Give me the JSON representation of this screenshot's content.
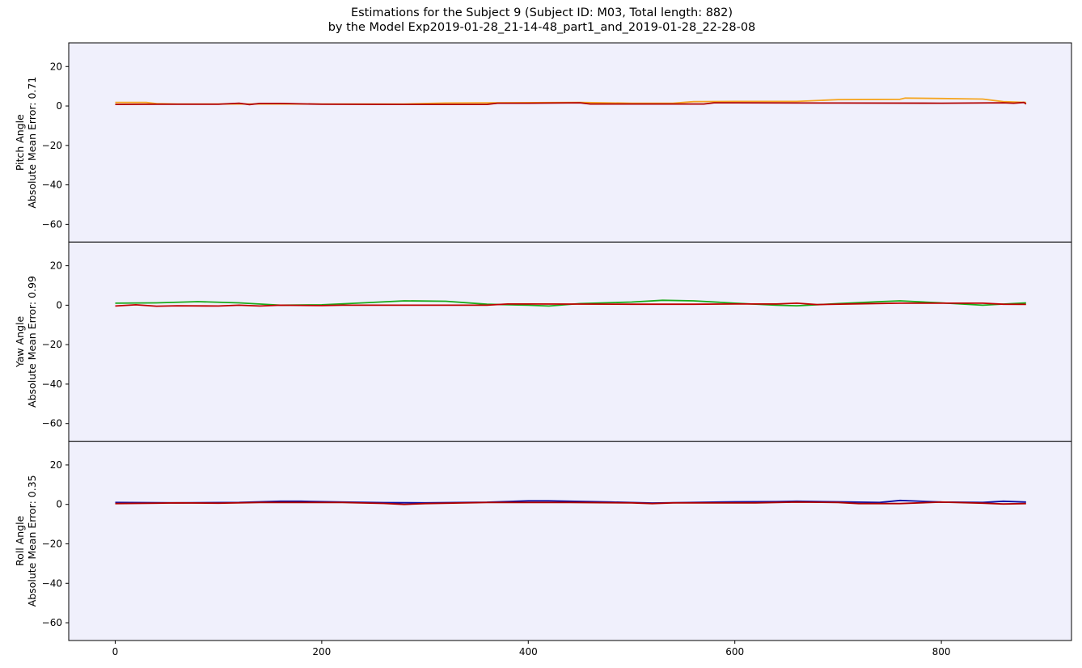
{
  "chart_data": {
    "type": "line",
    "title_line1": "Estimations for the Subject 9 (Subject ID: M03, Total length: 882)",
    "title_line2": "by the Model Exp2019-01-28_21-14-48_part1_and_2019-01-28_22-28-08",
    "xlim": [
      -45,
      926
    ],
    "ylim": [
      -69,
      32
    ],
    "xticks": [
      0,
      200,
      400,
      600,
      800
    ],
    "yticks": [
      20,
      0,
      -20,
      -40,
      -60
    ],
    "background": "#f0f0fc",
    "panels": [
      {
        "ylabel_line1": "Pitch Angle",
        "ylabel_line2": "Absolute Mean Error: 0.71",
        "series": [
          {
            "role": "ground-truth",
            "color": "#f5a623",
            "x": [
              0,
              30,
              40,
              60,
              100,
              200,
              280,
              320,
              360,
              450,
              500,
              540,
              560,
              600,
              660,
              700,
              760,
              765,
              800,
              840,
              860,
              882
            ],
            "y": [
              1.8,
              1.8,
              1.2,
              1.0,
              1.0,
              1.0,
              1.0,
              1.5,
              1.6,
              1.8,
              1.4,
              1.4,
              2.2,
              2.3,
              2.3,
              3.2,
              3.4,
              4.0,
              3.8,
              3.5,
              2.2,
              1.8
            ]
          },
          {
            "role": "estimation",
            "color": "#b00000",
            "x": [
              0,
              40,
              100,
              120,
              130,
              140,
              160,
              200,
              280,
              300,
              360,
              370,
              400,
              450,
              460,
              540,
              570,
              580,
              600,
              700,
              800,
              860,
              870,
              880,
              882
            ],
            "y": [
              0.8,
              0.9,
              0.9,
              1.4,
              0.7,
              1.3,
              1.3,
              0.9,
              0.8,
              0.8,
              0.8,
              1.4,
              1.4,
              1.6,
              1.0,
              1.0,
              1.0,
              1.6,
              1.6,
              1.5,
              1.4,
              1.6,
              1.4,
              1.8,
              1.0
            ]
          }
        ]
      },
      {
        "ylabel_line1": "Yaw Angle",
        "ylabel_line2": "Absolute Mean Error: 0.99",
        "series": [
          {
            "role": "ground-truth",
            "color": "#1aaa1a",
            "x": [
              0,
              40,
              80,
              120,
              160,
              200,
              240,
              280,
              320,
              360,
              400,
              420,
              450,
              500,
              530,
              560,
              600,
              640,
              660,
              700,
              740,
              760,
              800,
              840,
              882
            ],
            "y": [
              1.0,
              1.2,
              1.8,
              1.2,
              0.0,
              0.2,
              1.2,
              2.2,
              2.0,
              0.5,
              0.0,
              -0.4,
              0.8,
              1.6,
              2.5,
              2.2,
              1.0,
              0.0,
              -0.3,
              0.8,
              1.8,
              2.2,
              1.2,
              0.0,
              1.2
            ]
          },
          {
            "role": "estimation",
            "color": "#c00000",
            "x": [
              0,
              20,
              40,
              60,
              100,
              120,
              140,
              160,
              200,
              220,
              300,
              340,
              360,
              380,
              400,
              500,
              560,
              600,
              640,
              660,
              680,
              720,
              760,
              800,
              840,
              860,
              882
            ],
            "y": [
              -0.4,
              0.2,
              -0.5,
              -0.3,
              -0.4,
              0.0,
              -0.4,
              0.0,
              -0.2,
              0.0,
              0.0,
              0.0,
              0.0,
              0.6,
              0.6,
              0.5,
              0.5,
              0.6,
              0.6,
              1.0,
              0.3,
              0.7,
              1.0,
              1.0,
              1.0,
              0.5,
              0.4
            ]
          }
        ]
      },
      {
        "ylabel_line1": "Roll Angle",
        "ylabel_line2": "Absolute Mean Error: 0.35",
        "series": [
          {
            "role": "ground-truth",
            "color": "#0a0aa0",
            "x": [
              0,
              60,
              120,
              160,
              180,
              220,
              260,
              300,
              360,
              400,
              420,
              480,
              520,
              560,
              600,
              640,
              660,
              700,
              740,
              760,
              800,
              840,
              860,
              882
            ],
            "y": [
              1.0,
              0.8,
              1.0,
              1.6,
              1.6,
              1.2,
              0.9,
              0.8,
              1.1,
              1.8,
              1.8,
              1.2,
              0.7,
              1.0,
              1.3,
              1.4,
              1.6,
              1.3,
              1.0,
              2.0,
              1.2,
              1.0,
              1.6,
              1.2
            ]
          },
          {
            "role": "estimation",
            "color": "#b00000",
            "x": [
              0,
              40,
              60,
              100,
              140,
              180,
              220,
              260,
              280,
              300,
              360,
              400,
              440,
              500,
              520,
              540,
              580,
              620,
              660,
              700,
              720,
              760,
              800,
              840,
              860,
              882
            ],
            "y": [
              0.4,
              0.6,
              0.8,
              0.6,
              1.0,
              1.0,
              1.0,
              0.5,
              0.0,
              0.4,
              1.0,
              1.0,
              1.0,
              0.8,
              0.4,
              0.8,
              0.8,
              0.8,
              1.2,
              1.0,
              0.4,
              0.4,
              1.2,
              0.6,
              0.2,
              0.4
            ]
          }
        ]
      }
    ]
  }
}
